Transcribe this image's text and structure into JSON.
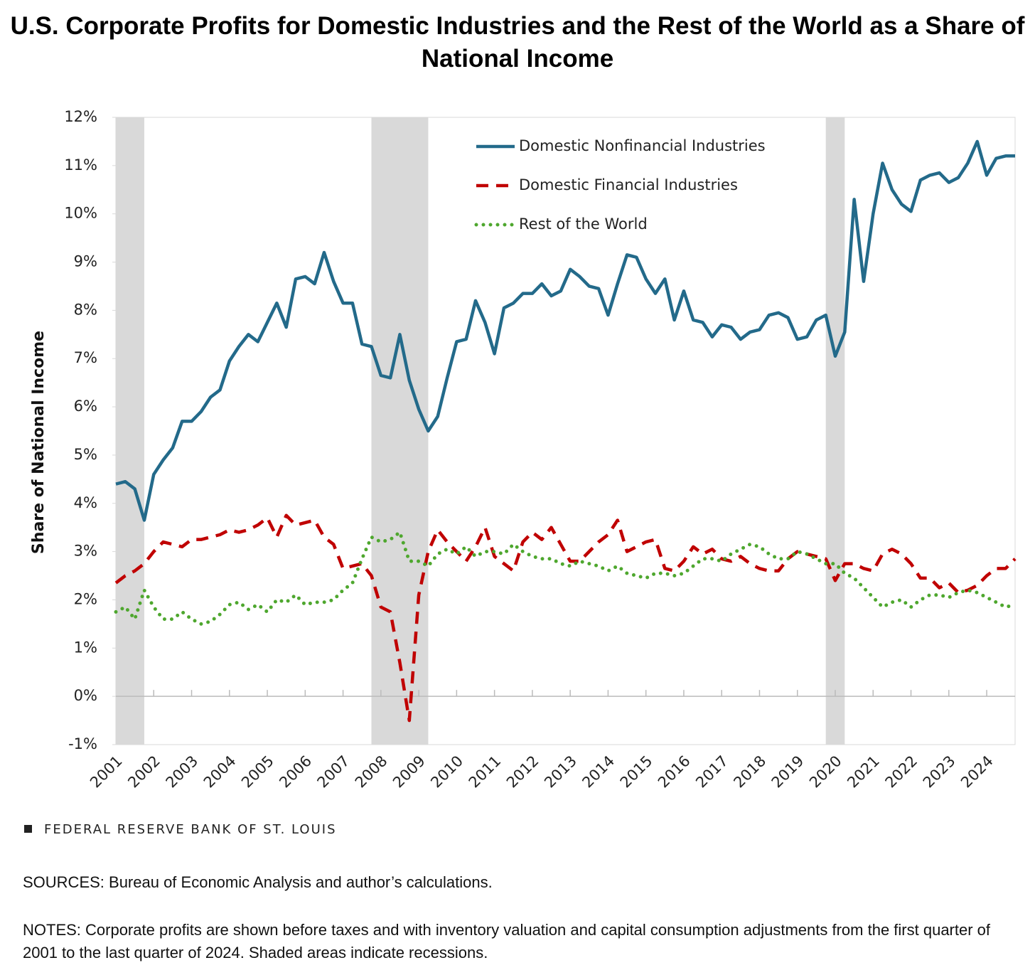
{
  "chart_data": {
    "type": "line",
    "title": "U.S. Corporate Profits for Domestic Industries and the Rest of the World as a Share of National Income",
    "y_label": "Share of National Income",
    "categories": [
      "2001",
      null,
      null,
      null,
      "2002",
      null,
      null,
      null,
      "2003",
      null,
      null,
      null,
      "2004",
      null,
      null,
      null,
      "2005",
      null,
      null,
      null,
      "2006",
      null,
      null,
      null,
      "2007",
      null,
      null,
      null,
      "2008",
      null,
      null,
      null,
      "2009",
      null,
      null,
      null,
      "2010",
      null,
      null,
      null,
      "2011",
      null,
      null,
      null,
      "2012",
      null,
      null,
      null,
      "2013",
      null,
      null,
      null,
      "2014",
      null,
      null,
      null,
      "2015",
      null,
      null,
      null,
      "2016",
      null,
      null,
      null,
      "2017",
      null,
      null,
      null,
      "2018",
      null,
      null,
      null,
      "2019",
      null,
      null,
      null,
      "2020",
      null,
      null,
      null,
      "2021",
      null,
      null,
      null,
      "2022",
      null,
      null,
      null,
      "2023",
      null,
      null,
      null,
      "2024",
      null,
      null,
      null
    ],
    "series": [
      {
        "name": "Domestic Nonfinancial Industries",
        "color": "#236a8a",
        "style": "solid",
        "values": [
          4.4,
          4.45,
          4.3,
          3.65,
          4.6,
          4.9,
          5.15,
          5.7,
          5.7,
          5.9,
          6.2,
          6.35,
          6.95,
          7.25,
          7.5,
          7.35,
          7.75,
          8.15,
          7.65,
          8.65,
          8.7,
          8.55,
          9.2,
          8.6,
          8.15,
          8.15,
          7.3,
          7.25,
          6.65,
          6.6,
          7.5,
          6.55,
          5.95,
          5.5,
          5.8,
          6.6,
          7.35,
          7.4,
          8.2,
          7.75,
          7.1,
          8.05,
          8.15,
          8.35,
          8.35,
          8.55,
          8.3,
          8.4,
          8.85,
          8.7,
          8.5,
          8.45,
          7.9,
          8.55,
          9.15,
          9.1,
          8.65,
          8.35,
          8.65,
          7.8,
          8.4,
          7.8,
          7.75,
          7.45,
          7.7,
          7.65,
          7.4,
          7.55,
          7.6,
          7.9,
          7.95,
          7.85,
          7.4,
          7.45,
          7.8,
          7.9,
          7.05,
          7.55,
          10.3,
          8.6,
          10.0,
          11.05,
          10.5,
          10.2,
          10.05,
          10.7,
          10.8,
          10.85,
          10.65,
          10.75,
          11.05,
          11.5,
          10.8,
          11.15,
          11.2,
          11.2
        ]
      },
      {
        "name": "Domestic Financial Industries",
        "color": "#c00000",
        "style": "dashed",
        "values": [
          2.35,
          2.5,
          2.6,
          2.75,
          3.0,
          3.2,
          3.15,
          3.1,
          3.25,
          3.25,
          3.3,
          3.35,
          3.45,
          3.4,
          3.45,
          3.55,
          3.7,
          3.3,
          3.75,
          3.55,
          3.6,
          3.65,
          3.3,
          3.15,
          2.65,
          2.7,
          2.75,
          2.5,
          1.85,
          1.75,
          0.7,
          -0.5,
          2.1,
          3.0,
          3.45,
          3.2,
          3.0,
          2.8,
          3.1,
          3.5,
          2.9,
          2.75,
          2.6,
          3.2,
          3.4,
          3.25,
          3.5,
          3.15,
          2.8,
          2.8,
          3.0,
          3.2,
          3.35,
          3.65,
          3.0,
          3.1,
          3.2,
          3.25,
          2.65,
          2.6,
          2.8,
          3.1,
          2.95,
          3.05,
          2.85,
          2.8,
          2.9,
          2.75,
          2.65,
          2.6,
          2.6,
          2.85,
          3.0,
          2.95,
          2.9,
          2.85,
          2.4,
          2.75,
          2.75,
          2.65,
          2.6,
          2.95,
          3.05,
          2.95,
          2.75,
          2.45,
          2.45,
          2.25,
          2.35,
          2.15,
          2.2,
          2.3,
          2.5,
          2.65,
          2.65,
          2.85
        ]
      },
      {
        "name": "Rest of the World",
        "color": "#4ea72e",
        "style": "dotted",
        "values": [
          1.75,
          1.85,
          1.6,
          2.2,
          1.85,
          1.6,
          1.6,
          1.75,
          1.6,
          1.5,
          1.55,
          1.7,
          1.9,
          1.95,
          1.8,
          1.9,
          1.75,
          2.0,
          1.95,
          2.1,
          1.9,
          1.95,
          1.95,
          2.0,
          2.2,
          2.35,
          2.85,
          3.3,
          3.2,
          3.25,
          3.4,
          2.8,
          2.8,
          2.7,
          2.95,
          3.05,
          2.95,
          3.1,
          2.9,
          3.0,
          3.0,
          2.95,
          3.15,
          3.0,
          2.9,
          2.85,
          2.85,
          2.75,
          2.7,
          2.8,
          2.75,
          2.7,
          2.6,
          2.7,
          2.55,
          2.5,
          2.45,
          2.55,
          2.55,
          2.5,
          2.55,
          2.7,
          2.85,
          2.85,
          2.8,
          2.95,
          3.05,
          3.15,
          3.1,
          2.95,
          2.85,
          2.85,
          3.0,
          2.95,
          2.85,
          2.75,
          2.75,
          2.55,
          2.45,
          2.25,
          2.05,
          1.85,
          1.95,
          2.0,
          1.85,
          2.0,
          2.1,
          2.1,
          2.05,
          2.15,
          2.2,
          2.15,
          2.05,
          1.95,
          1.85,
          1.9
        ]
      }
    ],
    "recessions": [
      [
        0,
        3
      ],
      [
        27,
        33
      ],
      [
        75,
        77
      ]
    ],
    "ylim": [
      -1,
      12
    ],
    "yticks": [
      {
        "value": -1,
        "label": "-1%"
      },
      {
        "value": 0,
        "label": "0%"
      },
      {
        "value": 1,
        "label": "1%"
      },
      {
        "value": 2,
        "label": "2%"
      },
      {
        "value": 3,
        "label": "3%"
      },
      {
        "value": 4,
        "label": "4%"
      },
      {
        "value": 5,
        "label": "5%"
      },
      {
        "value": 6,
        "label": "6%"
      },
      {
        "value": 7,
        "label": "7%"
      },
      {
        "value": 8,
        "label": "8%"
      },
      {
        "value": 9,
        "label": "9%"
      },
      {
        "value": 10,
        "label": "10%"
      },
      {
        "value": 11,
        "label": "11%"
      },
      {
        "value": 12,
        "label": "12%"
      }
    ],
    "grid": false,
    "legend": "upper center"
  },
  "branding": "FEDERAL RESERVE BANK OF ST. LOUIS",
  "sources": "SOURCES: Bureau of Economic Analysis and author’s calculations.",
  "notes": "NOTES: Corporate profits are shown before taxes and with inventory valuation and capital consumption adjustments from the first quarter of 2001 to the last quarter of 2024. Shaded areas indicate recessions."
}
